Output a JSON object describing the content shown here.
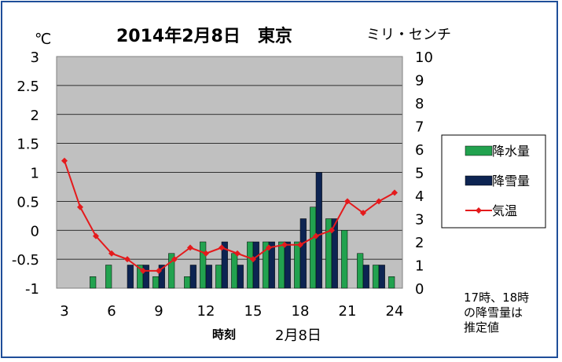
{
  "chart_data": {
    "type": "bar",
    "title": "2014年2月8日　東京",
    "left_unit": "℃",
    "right_unit": "ミリ・センチ",
    "xlabel": "時刻",
    "xlabel2": "2月8日",
    "x": [
      3,
      4,
      5,
      6,
      7,
      8,
      9,
      10,
      11,
      12,
      13,
      14,
      15,
      16,
      17,
      18,
      19,
      20,
      21,
      22,
      23,
      24
    ],
    "x_ticks": [
      "3",
      "6",
      "9",
      "12",
      "15",
      "18",
      "21",
      "24"
    ],
    "left_ticks": [
      "3",
      "2.5",
      "2",
      "1.5",
      "1",
      "0.5",
      "0",
      "-0.5",
      "-1"
    ],
    "right_ticks": [
      "10",
      "9",
      "8",
      "7",
      "6",
      "5",
      "4",
      "3",
      "2",
      "1",
      "0"
    ],
    "ylim_left": [
      -1,
      3
    ],
    "ylim_right": [
      0,
      10
    ],
    "series": [
      {
        "name": "降水量",
        "axis": "right",
        "color": "#22a24f",
        "values": [
          0,
          0,
          0.5,
          1,
          0,
          1,
          0.5,
          1.5,
          0.5,
          2,
          1,
          1.5,
          2,
          2,
          2,
          2,
          3.5,
          3,
          2.5,
          1.5,
          1,
          0.5
        ]
      },
      {
        "name": "降雪量",
        "axis": "right",
        "color": "#0d2452",
        "values": [
          0,
          0,
          0,
          0,
          1,
          1,
          1,
          0,
          1,
          1,
          2,
          1,
          2,
          2,
          2,
          3,
          5,
          3,
          0,
          1,
          1,
          0
        ]
      },
      {
        "name": "気温",
        "axis": "left",
        "type": "line",
        "color": "#e41a1c",
        "values": [
          1.2,
          0.4,
          -0.1,
          -0.4,
          -0.5,
          -0.7,
          -0.7,
          -0.5,
          -0.3,
          -0.4,
          -0.3,
          -0.4,
          -0.5,
          -0.3,
          -0.25,
          -0.25,
          -0.1,
          0,
          0.5,
          0.3,
          0.5,
          0.65
        ]
      }
    ],
    "grid": true,
    "legend_position": "right"
  },
  "note_lines": [
    "17時、18時",
    "の降雪量は",
    "推定値"
  ]
}
